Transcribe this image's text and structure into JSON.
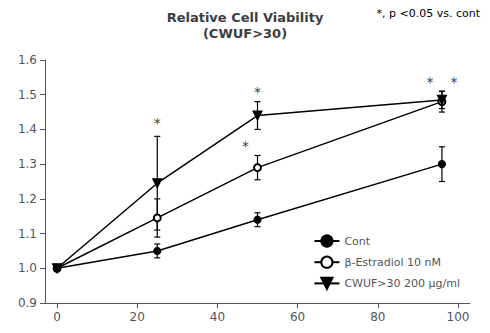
{
  "chart_data": {
    "type": "line",
    "title": "Relative Cell Viability\n(CWUF>30)",
    "x": [
      0,
      25,
      50,
      96
    ],
    "series": [
      {
        "name": "Cont",
        "color": "#000000",
        "marker": "circle",
        "values": [
          1.0,
          1.05,
          1.14,
          1.3
        ],
        "yerr": [
          0.0,
          0.02,
          0.02,
          0.05
        ]
      },
      {
        "name": "β-Estradiol 10 nM",
        "color": "#000000",
        "marker": "open_circle",
        "values": [
          1.0,
          1.145,
          1.29,
          1.48
        ],
        "yerr": [
          0.0,
          0.055,
          0.035,
          0.03
        ]
      },
      {
        "name": "CWUF>30 200 μg/ml",
        "color": "#000000",
        "marker": "triangle_down",
        "values": [
          1.0,
          1.245,
          1.44,
          1.485
        ],
        "yerr": [
          0.0,
          0.135,
          0.04,
          0.025
        ]
      }
    ],
    "xlim": [
      -3,
      103
    ],
    "ylim": [
      0.9,
      1.6
    ],
    "xticks": [
      0,
      20,
      40,
      60,
      80,
      100
    ],
    "yticks": [
      0.9,
      {
        "value": 1.0,
        "label": "1.0"
      },
      1.1,
      1.2,
      1.3,
      1.4,
      1.5,
      1.6
    ],
    "grid": false,
    "legend": "lower right",
    "annotations": [
      {
        "text": "*",
        "x": 25,
        "y": 1.405
      },
      {
        "text": "*",
        "x": 50,
        "y": 1.492
      },
      {
        "text": "*",
        "x": 47,
        "y": 1.337
      },
      {
        "text": "*",
        "x": 93,
        "y": 1.522
      },
      {
        "text": "*",
        "x": 99,
        "y": 1.522
      },
      {
        "text": "*, p <0.05 vs. cont"
      }
    ]
  }
}
